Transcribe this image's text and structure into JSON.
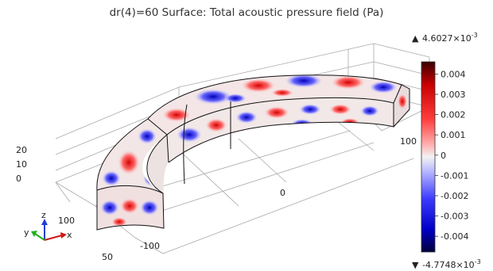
{
  "chart_data": {
    "type": "heatmap",
    "title": "dr(4)=60 Surface: Total acoustic pressure field (Pa)",
    "colorbar": {
      "max_label": "4.6027×10",
      "max_exp": "-3",
      "min_label": "-4.7748×10",
      "min_exp": "-3",
      "max_value": 0.0046027,
      "min_value": -0.0047748,
      "ticks": [
        "0.004",
        "0.003",
        "0.002",
        "0.001",
        "0",
        "-0.001",
        "-0.002",
        "-0.003",
        "-0.004"
      ],
      "tick_values": [
        0.004,
        0.003,
        0.002,
        0.001,
        0,
        -0.001,
        -0.002,
        -0.003,
        -0.004
      ],
      "colormap": [
        "#3a0000",
        "#c80000",
        "#ff3c3c",
        "#ffb4b4",
        "#f2f2f2",
        "#b4b4ff",
        "#3c3cff",
        "#0000c8",
        "#00003a"
      ]
    },
    "axes": {
      "z_ticks": [
        "20",
        "10",
        "0"
      ],
      "x_ticks": [
        "0",
        "100"
      ],
      "y_ticks": [
        "100",
        "50",
        "-100"
      ]
    },
    "triad": {
      "z": "z",
      "y": "y",
      "x": "x"
    },
    "grid": true
  }
}
